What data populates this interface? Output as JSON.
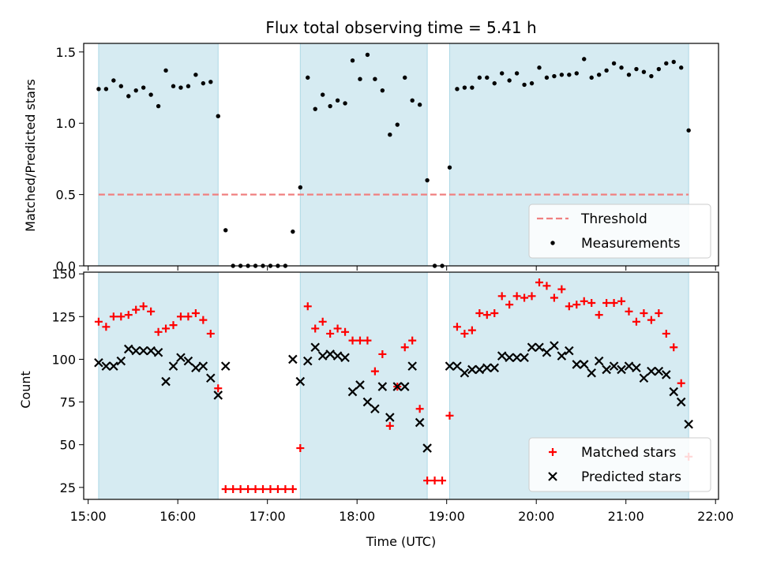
{
  "chart_data": [
    {
      "type": "scatter",
      "title": "Flux total observing time = 5.41 h",
      "xlabel": "",
      "ylabel": "Matched/Predicted stars",
      "xlim": [
        "15:00",
        "22:00"
      ],
      "ylim": [
        0,
        1.56
      ],
      "yticks": [
        0.0,
        0.5,
        1.0,
        1.5
      ],
      "ytick_labels": [
        "0.0",
        "0.5",
        "1.0",
        "1.5"
      ],
      "threshold": 0.5,
      "threshold_range": [
        "15:07",
        "21:42"
      ],
      "shaded_intervals": [
        [
          "15:07",
          "16:27"
        ],
        [
          "17:22",
          "18:47"
        ],
        [
          "19:02",
          "21:42"
        ]
      ],
      "legend": {
        "position": "lower-right",
        "entries": [
          {
            "label": "Threshold",
            "marker": "dashed-line",
            "color": "#f08080"
          },
          {
            "label": "Measurements",
            "marker": "dot",
            "color": "#000000"
          }
        ]
      },
      "series": [
        {
          "name": "Measurements",
          "color": "#000000",
          "points": [
            [
              "15:07",
              1.24
            ],
            [
              "15:12",
              1.24
            ],
            [
              "15:17",
              1.3
            ],
            [
              "15:22",
              1.26
            ],
            [
              "15:27",
              1.19
            ],
            [
              "15:32",
              1.23
            ],
            [
              "15:37",
              1.25
            ],
            [
              "15:42",
              1.2
            ],
            [
              "15:47",
              1.12
            ],
            [
              "15:52",
              1.37
            ],
            [
              "15:57",
              1.26
            ],
            [
              "16:02",
              1.25
            ],
            [
              "16:07",
              1.26
            ],
            [
              "16:12",
              1.34
            ],
            [
              "16:17",
              1.28
            ],
            [
              "16:22",
              1.29
            ],
            [
              "16:27",
              1.05
            ],
            [
              "16:32",
              0.25
            ],
            [
              "16:37",
              0.0
            ],
            [
              "16:42",
              0.0
            ],
            [
              "16:47",
              0.0
            ],
            [
              "16:52",
              0.0
            ],
            [
              "16:57",
              0.0
            ],
            [
              "17:02",
              0.0
            ],
            [
              "17:07",
              0.0
            ],
            [
              "17:12",
              0.0
            ],
            [
              "17:17",
              0.24
            ],
            [
              "17:22",
              0.55
            ],
            [
              "17:27",
              1.32
            ],
            [
              "17:32",
              1.1
            ],
            [
              "17:37",
              1.2
            ],
            [
              "17:42",
              1.12
            ],
            [
              "17:47",
              1.16
            ],
            [
              "17:52",
              1.14
            ],
            [
              "17:57",
              1.44
            ],
            [
              "18:02",
              1.31
            ],
            [
              "18:07",
              1.48
            ],
            [
              "18:12",
              1.31
            ],
            [
              "18:17",
              1.23
            ],
            [
              "18:22",
              0.92
            ],
            [
              "18:27",
              0.99
            ],
            [
              "18:32",
              1.32
            ],
            [
              "18:37",
              1.16
            ],
            [
              "18:42",
              1.13
            ],
            [
              "18:47",
              0.6
            ],
            [
              "18:52",
              0.0
            ],
            [
              "18:57",
              0.0
            ],
            [
              "19:02",
              0.69
            ],
            [
              "19:07",
              1.24
            ],
            [
              "19:12",
              1.25
            ],
            [
              "19:17",
              1.25
            ],
            [
              "19:22",
              1.32
            ],
            [
              "19:27",
              1.32
            ],
            [
              "19:32",
              1.28
            ],
            [
              "19:37",
              1.35
            ],
            [
              "19:42",
              1.3
            ],
            [
              "19:47",
              1.35
            ],
            [
              "19:52",
              1.27
            ],
            [
              "19:57",
              1.28
            ],
            [
              "20:02",
              1.39
            ],
            [
              "20:07",
              1.32
            ],
            [
              "20:12",
              1.33
            ],
            [
              "20:17",
              1.34
            ],
            [
              "20:22",
              1.34
            ],
            [
              "20:27",
              1.35
            ],
            [
              "20:32",
              1.45
            ],
            [
              "20:37",
              1.32
            ],
            [
              "20:42",
              1.34
            ],
            [
              "20:47",
              1.37
            ],
            [
              "20:52",
              1.42
            ],
            [
              "20:57",
              1.39
            ],
            [
              "21:02",
              1.34
            ],
            [
              "21:07",
              1.38
            ],
            [
              "21:12",
              1.36
            ],
            [
              "21:17",
              1.33
            ],
            [
              "21:22",
              1.38
            ],
            [
              "21:27",
              1.42
            ],
            [
              "21:32",
              1.43
            ],
            [
              "21:37",
              1.39
            ],
            [
              "21:42",
              0.95
            ]
          ]
        }
      ]
    },
    {
      "type": "scatter",
      "title": "",
      "xlabel": "Time (UTC)",
      "ylabel": "Count",
      "xlim": [
        "14:57",
        "22:02"
      ],
      "xticks": [
        "15:00",
        "16:00",
        "17:00",
        "18:00",
        "19:00",
        "20:00",
        "21:00",
        "22:00"
      ],
      "ylim": [
        18,
        151
      ],
      "yticks": [
        25,
        50,
        75,
        100,
        125,
        150
      ],
      "shaded_intervals": [
        [
          "15:07",
          "16:27"
        ],
        [
          "17:22",
          "18:47"
        ],
        [
          "19:02",
          "21:42"
        ]
      ],
      "legend": {
        "position": "lower-right",
        "entries": [
          {
            "label": "Matched stars",
            "marker": "plus",
            "color": "#ff0000"
          },
          {
            "label": "Predicted stars",
            "marker": "x",
            "color": "#000000"
          }
        ]
      },
      "series": [
        {
          "name": "Matched stars",
          "color": "#ff0000",
          "marker": "plus",
          "points": [
            [
              "15:07",
              122
            ],
            [
              "15:12",
              119
            ],
            [
              "15:17",
              125
            ],
            [
              "15:22",
              125
            ],
            [
              "15:27",
              126
            ],
            [
              "15:32",
              129
            ],
            [
              "15:37",
              131
            ],
            [
              "15:42",
              128
            ],
            [
              "15:47",
              116
            ],
            [
              "15:52",
              118
            ],
            [
              "15:57",
              120
            ],
            [
              "16:02",
              125
            ],
            [
              "16:07",
              125
            ],
            [
              "16:12",
              127
            ],
            [
              "16:17",
              123
            ],
            [
              "16:22",
              115
            ],
            [
              "16:27",
              83
            ],
            [
              "16:32",
              24
            ],
            [
              "16:37",
              24
            ],
            [
              "16:42",
              24
            ],
            [
              "16:47",
              24
            ],
            [
              "16:52",
              24
            ],
            [
              "16:57",
              24
            ],
            [
              "17:02",
              24
            ],
            [
              "17:07",
              24
            ],
            [
              "17:12",
              24
            ],
            [
              "17:17",
              24
            ],
            [
              "17:22",
              48
            ],
            [
              "17:27",
              131
            ],
            [
              "17:32",
              118
            ],
            [
              "17:37",
              122
            ],
            [
              "17:42",
              115
            ],
            [
              "17:47",
              118
            ],
            [
              "17:52",
              116
            ],
            [
              "17:57",
              111
            ],
            [
              "18:02",
              111
            ],
            [
              "18:07",
              111
            ],
            [
              "18:12",
              93
            ],
            [
              "18:17",
              103
            ],
            [
              "18:22",
              61
            ],
            [
              "18:27",
              84
            ],
            [
              "18:32",
              107
            ],
            [
              "18:37",
              111
            ],
            [
              "18:42",
              71
            ],
            [
              "18:47",
              29
            ],
            [
              "18:52",
              29
            ],
            [
              "18:57",
              29
            ],
            [
              "19:02",
              67
            ],
            [
              "19:07",
              119
            ],
            [
              "19:12",
              115
            ],
            [
              "19:17",
              117
            ],
            [
              "19:22",
              127
            ],
            [
              "19:27",
              126
            ],
            [
              "19:32",
              127
            ],
            [
              "19:37",
              137
            ],
            [
              "19:42",
              132
            ],
            [
              "19:47",
              137
            ],
            [
              "19:52",
              136
            ],
            [
              "19:57",
              137
            ],
            [
              "20:02",
              145
            ],
            [
              "20:07",
              143
            ],
            [
              "20:12",
              136
            ],
            [
              "20:17",
              141
            ],
            [
              "20:22",
              131
            ],
            [
              "20:27",
              132
            ],
            [
              "20:32",
              134
            ],
            [
              "20:37",
              133
            ],
            [
              "20:42",
              126
            ],
            [
              "20:47",
              133
            ],
            [
              "20:52",
              133
            ],
            [
              "20:57",
              134
            ],
            [
              "21:02",
              128
            ],
            [
              "21:07",
              122
            ],
            [
              "21:12",
              127
            ],
            [
              "21:17",
              123
            ],
            [
              "21:22",
              127
            ],
            [
              "21:27",
              115
            ],
            [
              "21:32",
              107
            ],
            [
              "21:37",
              86
            ],
            [
              "21:42",
              43
            ]
          ]
        },
        {
          "name": "Predicted stars",
          "color": "#000000",
          "marker": "x",
          "points": [
            [
              "15:07",
              98
            ],
            [
              "15:12",
              96
            ],
            [
              "15:17",
              96
            ],
            [
              "15:22",
              99
            ],
            [
              "15:27",
              106
            ],
            [
              "15:32",
              105
            ],
            [
              "15:37",
              105
            ],
            [
              "15:42",
              105
            ],
            [
              "15:47",
              104
            ],
            [
              "15:52",
              87
            ],
            [
              "15:57",
              96
            ],
            [
              "16:02",
              101
            ],
            [
              "16:07",
              99
            ],
            [
              "16:12",
              95
            ],
            [
              "16:17",
              96
            ],
            [
              "16:22",
              89
            ],
            [
              "16:27",
              79
            ],
            [
              "16:32",
              96
            ],
            [
              "17:17",
              100
            ],
            [
              "17:22",
              87
            ],
            [
              "17:27",
              99
            ],
            [
              "17:32",
              107
            ],
            [
              "17:37",
              102
            ],
            [
              "17:42",
              103
            ],
            [
              "17:47",
              102
            ],
            [
              "17:52",
              101
            ],
            [
              "17:57",
              81
            ],
            [
              "18:02",
              85
            ],
            [
              "18:07",
              75
            ],
            [
              "18:12",
              71
            ],
            [
              "18:17",
              84
            ],
            [
              "18:22",
              66
            ],
            [
              "18:27",
              84
            ],
            [
              "18:32",
              84
            ],
            [
              "18:37",
              96
            ],
            [
              "18:42",
              63
            ],
            [
              "18:47",
              48
            ],
            [
              "19:02",
              96
            ],
            [
              "19:07",
              96
            ],
            [
              "19:12",
              92
            ],
            [
              "19:17",
              94
            ],
            [
              "19:22",
              94
            ],
            [
              "19:27",
              95
            ],
            [
              "19:32",
              95
            ],
            [
              "19:37",
              102
            ],
            [
              "19:42",
              101
            ],
            [
              "19:47",
              101
            ],
            [
              "19:52",
              101
            ],
            [
              "19:57",
              107
            ],
            [
              "20:02",
              107
            ],
            [
              "20:07",
              104
            ],
            [
              "20:12",
              108
            ],
            [
              "20:17",
              102
            ],
            [
              "20:22",
              105
            ],
            [
              "20:27",
              97
            ],
            [
              "20:32",
              97
            ],
            [
              "20:37",
              92
            ],
            [
              "20:42",
              99
            ],
            [
              "20:47",
              94
            ],
            [
              "20:52",
              96
            ],
            [
              "20:57",
              94
            ],
            [
              "21:02",
              96
            ],
            [
              "21:07",
              95
            ],
            [
              "21:12",
              89
            ],
            [
              "21:17",
              93
            ],
            [
              "21:22",
              93
            ],
            [
              "21:27",
              91
            ],
            [
              "21:32",
              81
            ],
            [
              "21:37",
              75
            ],
            [
              "21:42",
              62
            ]
          ]
        }
      ]
    }
  ]
}
